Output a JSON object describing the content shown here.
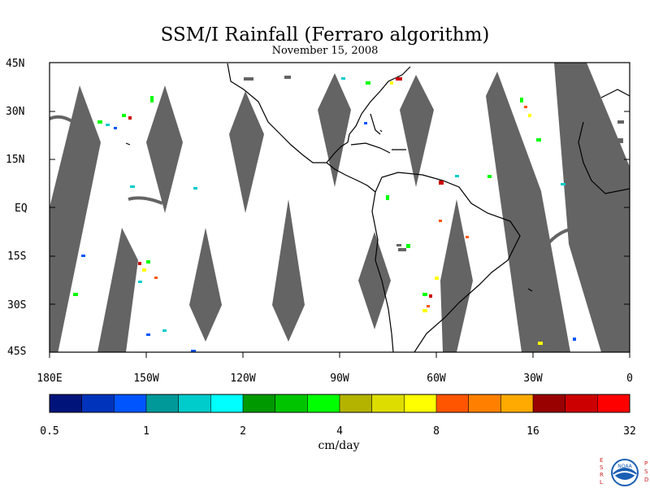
{
  "title": "SSM/I Rainfall (Ferraro algorithm)",
  "subtitle": "November 15, 2008",
  "lat_labels": [
    "45N",
    "30N",
    "15N",
    "EQ",
    "15S",
    "30S",
    "45S"
  ],
  "lon_labels": [
    "180E",
    "150W",
    "120W",
    "90W",
    "60W",
    "30W",
    "0"
  ],
  "colorbar": {
    "colors": [
      "#00137a",
      "#0033bb",
      "#0055ff",
      "#00999a",
      "#00cccc",
      "#00ffff",
      "#009900",
      "#00c400",
      "#00ff00",
      "#b3b300",
      "#dddd00",
      "#ffff00",
      "#ff5500",
      "#ff8000",
      "#ffaa00",
      "#990000",
      "#cc0000",
      "#ff0000"
    ],
    "tick_labels": [
      "0.5",
      "1",
      "2",
      "4",
      "8",
      "16",
      "32"
    ],
    "units": "cm/day"
  },
  "logo": {
    "left_letters": [
      "E",
      "S",
      "R",
      "L"
    ],
    "right_letters": [
      "P",
      "S",
      "D"
    ],
    "text": "NOAA"
  }
}
